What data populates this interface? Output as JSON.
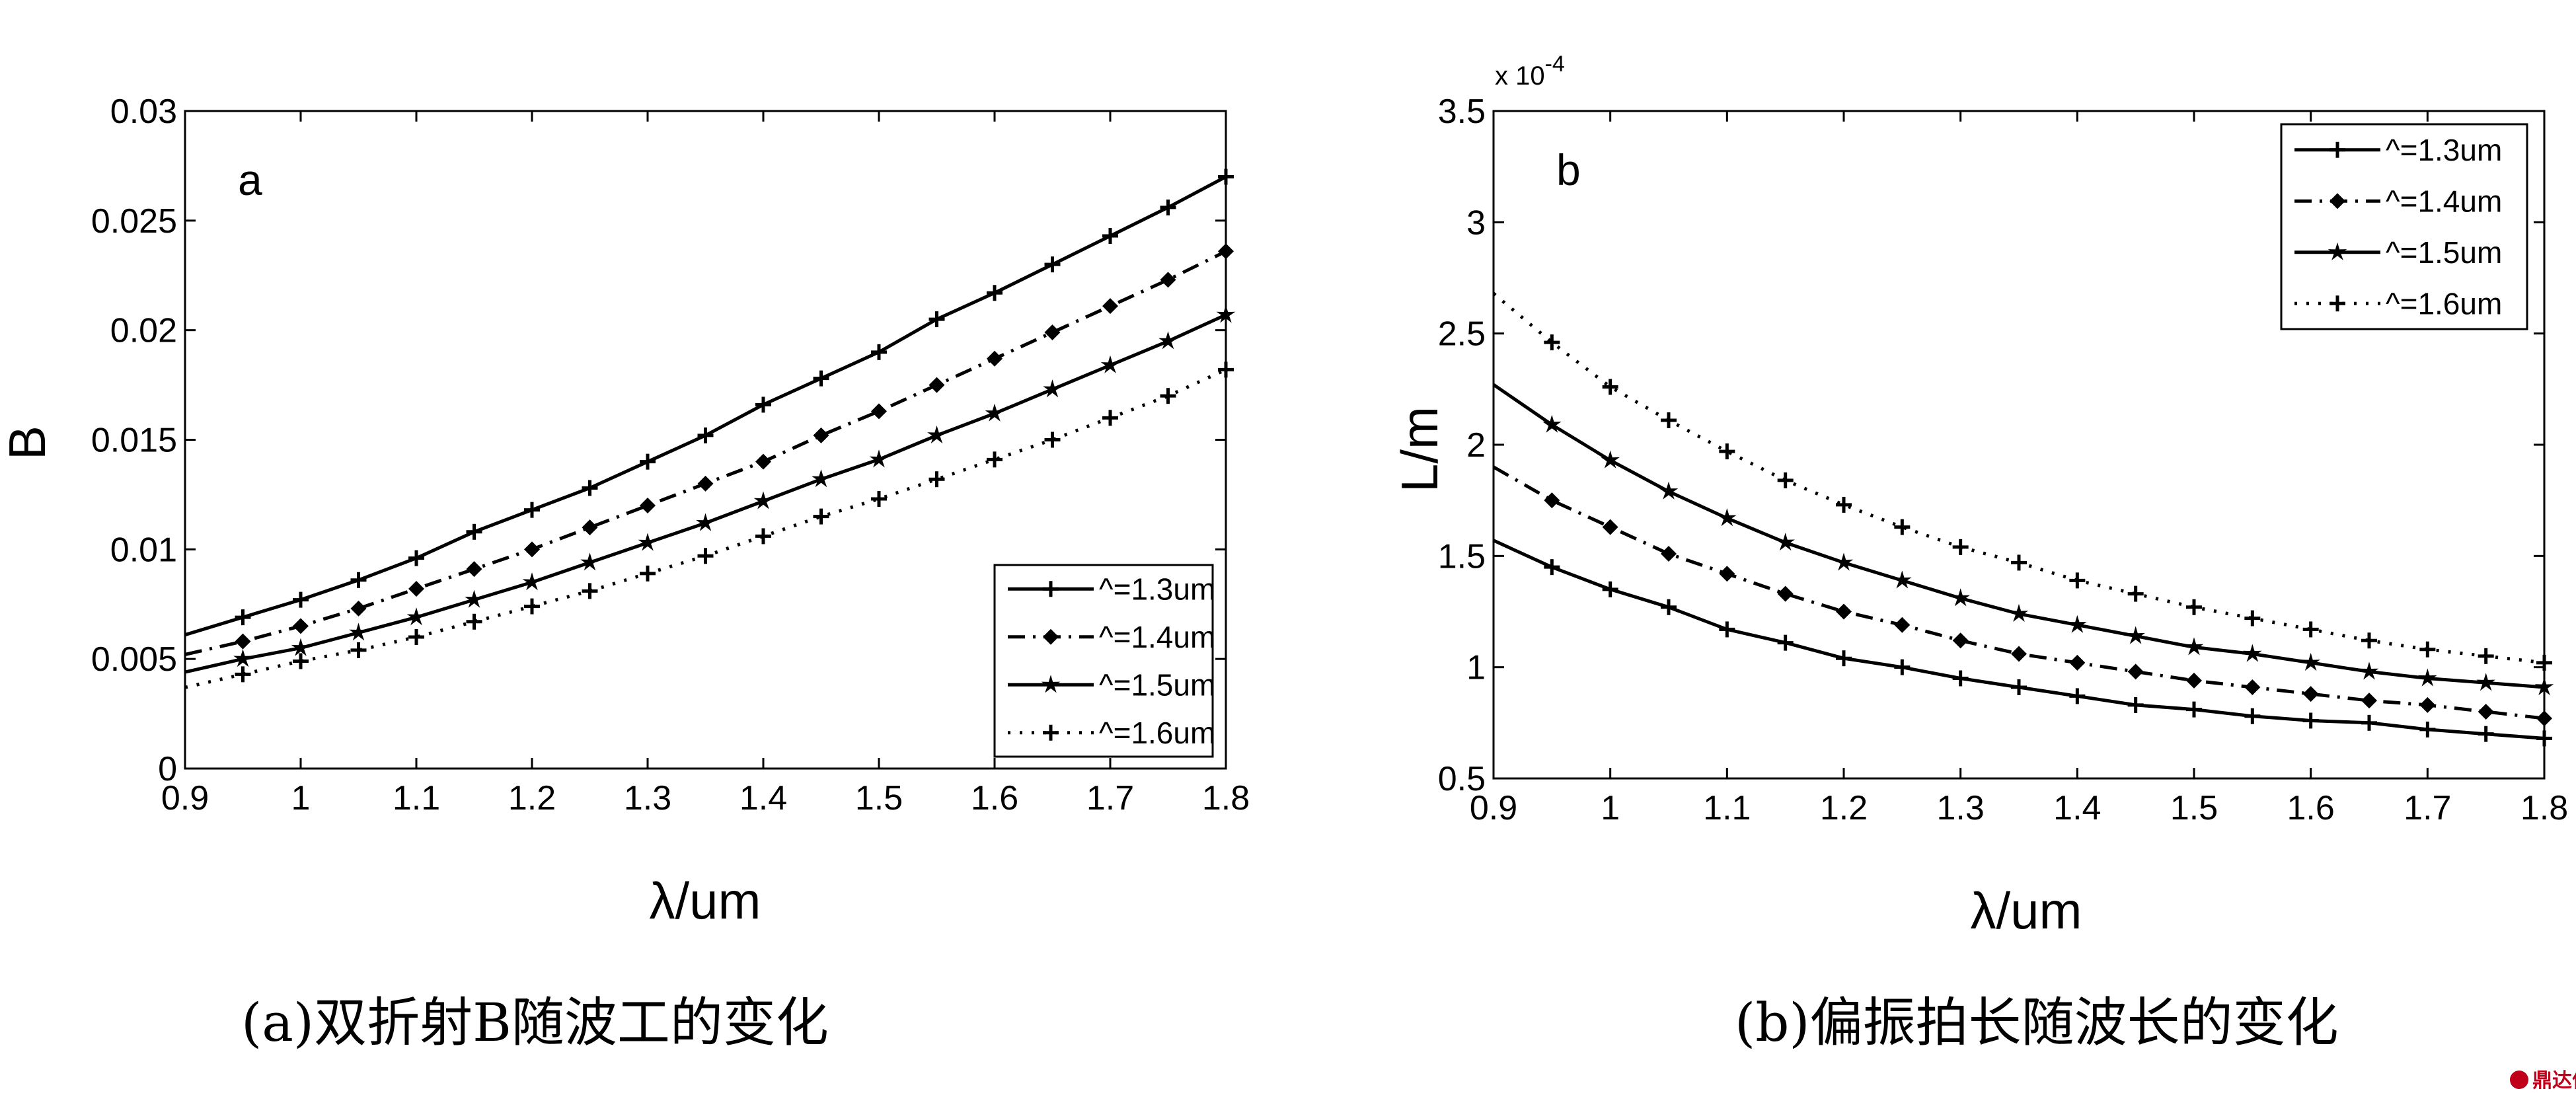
{
  "chart_data": [
    {
      "type": "line",
      "panel_label": "a",
      "xlabel": "λ/um",
      "ylabel": "B",
      "xlim": [
        0.9,
        1.8
      ],
      "ylim": [
        0,
        0.03
      ],
      "xticks": [
        "0.9",
        "1",
        "1.1",
        "1.2",
        "1.3",
        "1.4",
        "1.5",
        "1.6",
        "1.7",
        "1.8"
      ],
      "yticks": [
        "0",
        "0.005",
        "0.01",
        "0.015",
        "0.02",
        "0.025",
        "0.03"
      ],
      "legend_position": "bottom-right",
      "caption": "(a)双折射B随波工的变化",
      "x": [
        0.9,
        0.95,
        1.0,
        1.05,
        1.1,
        1.15,
        1.2,
        1.25,
        1.3,
        1.35,
        1.4,
        1.45,
        1.5,
        1.55,
        1.6,
        1.65,
        1.7,
        1.75,
        1.8
      ],
      "series": [
        {
          "name": "^=1.3um",
          "style": "solid",
          "marker": "plus",
          "values": [
            0.0061,
            0.0069,
            0.0077,
            0.0086,
            0.0096,
            0.0108,
            0.0118,
            0.0128,
            0.014,
            0.0152,
            0.0166,
            0.0178,
            0.019,
            0.0205,
            0.0217,
            0.023,
            0.0243,
            0.0256,
            0.027
          ]
        },
        {
          "name": "^=1.4um",
          "style": "dashdot",
          "marker": "diamond",
          "values": [
            0.0052,
            0.0058,
            0.0065,
            0.0073,
            0.0082,
            0.0091,
            0.01,
            0.011,
            0.012,
            0.013,
            0.014,
            0.0152,
            0.0163,
            0.0175,
            0.0187,
            0.0199,
            0.0211,
            0.0223,
            0.0236
          ]
        },
        {
          "name": "^=1.5um",
          "style": "solid",
          "marker": "star",
          "values": [
            0.0044,
            0.005,
            0.0055,
            0.0062,
            0.0069,
            0.0077,
            0.0085,
            0.0094,
            0.0103,
            0.0112,
            0.0122,
            0.0132,
            0.0141,
            0.0152,
            0.0162,
            0.0173,
            0.0184,
            0.0195,
            0.0207
          ]
        },
        {
          "name": "^=1.6um",
          "style": "dotted",
          "marker": "plus",
          "values": [
            0.0037,
            0.0043,
            0.0049,
            0.0054,
            0.006,
            0.0067,
            0.0074,
            0.0081,
            0.0089,
            0.0097,
            0.0106,
            0.0115,
            0.0123,
            0.0132,
            0.0141,
            0.015,
            0.016,
            0.017,
            0.0182
          ]
        }
      ]
    },
    {
      "type": "line",
      "panel_label": "b",
      "xlabel": "λ/um",
      "ylabel": "L/m",
      "y_multiplier": "x 10",
      "y_multiplier_exp": "-4",
      "xlim": [
        0.9,
        1.8
      ],
      "ylim": [
        0.5,
        3.5
      ],
      "xticks": [
        "0.9",
        "1",
        "1.1",
        "1.2",
        "1.3",
        "1.4",
        "1.5",
        "1.6",
        "1.7",
        "1.8"
      ],
      "yticks": [
        "0.5",
        "1",
        "1.5",
        "2",
        "2.5",
        "3",
        "3.5"
      ],
      "legend_position": "top-right",
      "caption": "(b)偏振拍长随波长的变化",
      "x": [
        0.9,
        0.95,
        1.0,
        1.05,
        1.1,
        1.15,
        1.2,
        1.25,
        1.3,
        1.35,
        1.4,
        1.45,
        1.5,
        1.55,
        1.6,
        1.65,
        1.7,
        1.75,
        1.8
      ],
      "series": [
        {
          "name": "^=1.3um",
          "style": "solid",
          "marker": "plus",
          "values": [
            1.57,
            1.45,
            1.35,
            1.27,
            1.17,
            1.11,
            1.04,
            1.0,
            0.95,
            0.91,
            0.87,
            0.83,
            0.81,
            0.78,
            0.76,
            0.75,
            0.72,
            0.7,
            0.68
          ]
        },
        {
          "name": "^=1.4um",
          "style": "dashdot",
          "marker": "diamond",
          "values": [
            1.9,
            1.75,
            1.63,
            1.51,
            1.42,
            1.33,
            1.25,
            1.19,
            1.12,
            1.06,
            1.02,
            0.98,
            0.94,
            0.91,
            0.88,
            0.85,
            0.83,
            0.8,
            0.77
          ]
        },
        {
          "name": "^=1.5um",
          "style": "solid",
          "marker": "star",
          "values": [
            2.27,
            2.09,
            1.93,
            1.79,
            1.67,
            1.56,
            1.47,
            1.39,
            1.31,
            1.24,
            1.19,
            1.14,
            1.09,
            1.06,
            1.02,
            0.98,
            0.95,
            0.93,
            0.91
          ]
        },
        {
          "name": "^=1.6um",
          "style": "dotted",
          "marker": "plus",
          "values": [
            2.68,
            2.46,
            2.26,
            2.11,
            1.97,
            1.84,
            1.73,
            1.63,
            1.54,
            1.47,
            1.39,
            1.33,
            1.27,
            1.22,
            1.17,
            1.12,
            1.08,
            1.05,
            1.02
          ]
        }
      ]
    }
  ],
  "watermark": "鼎达信"
}
